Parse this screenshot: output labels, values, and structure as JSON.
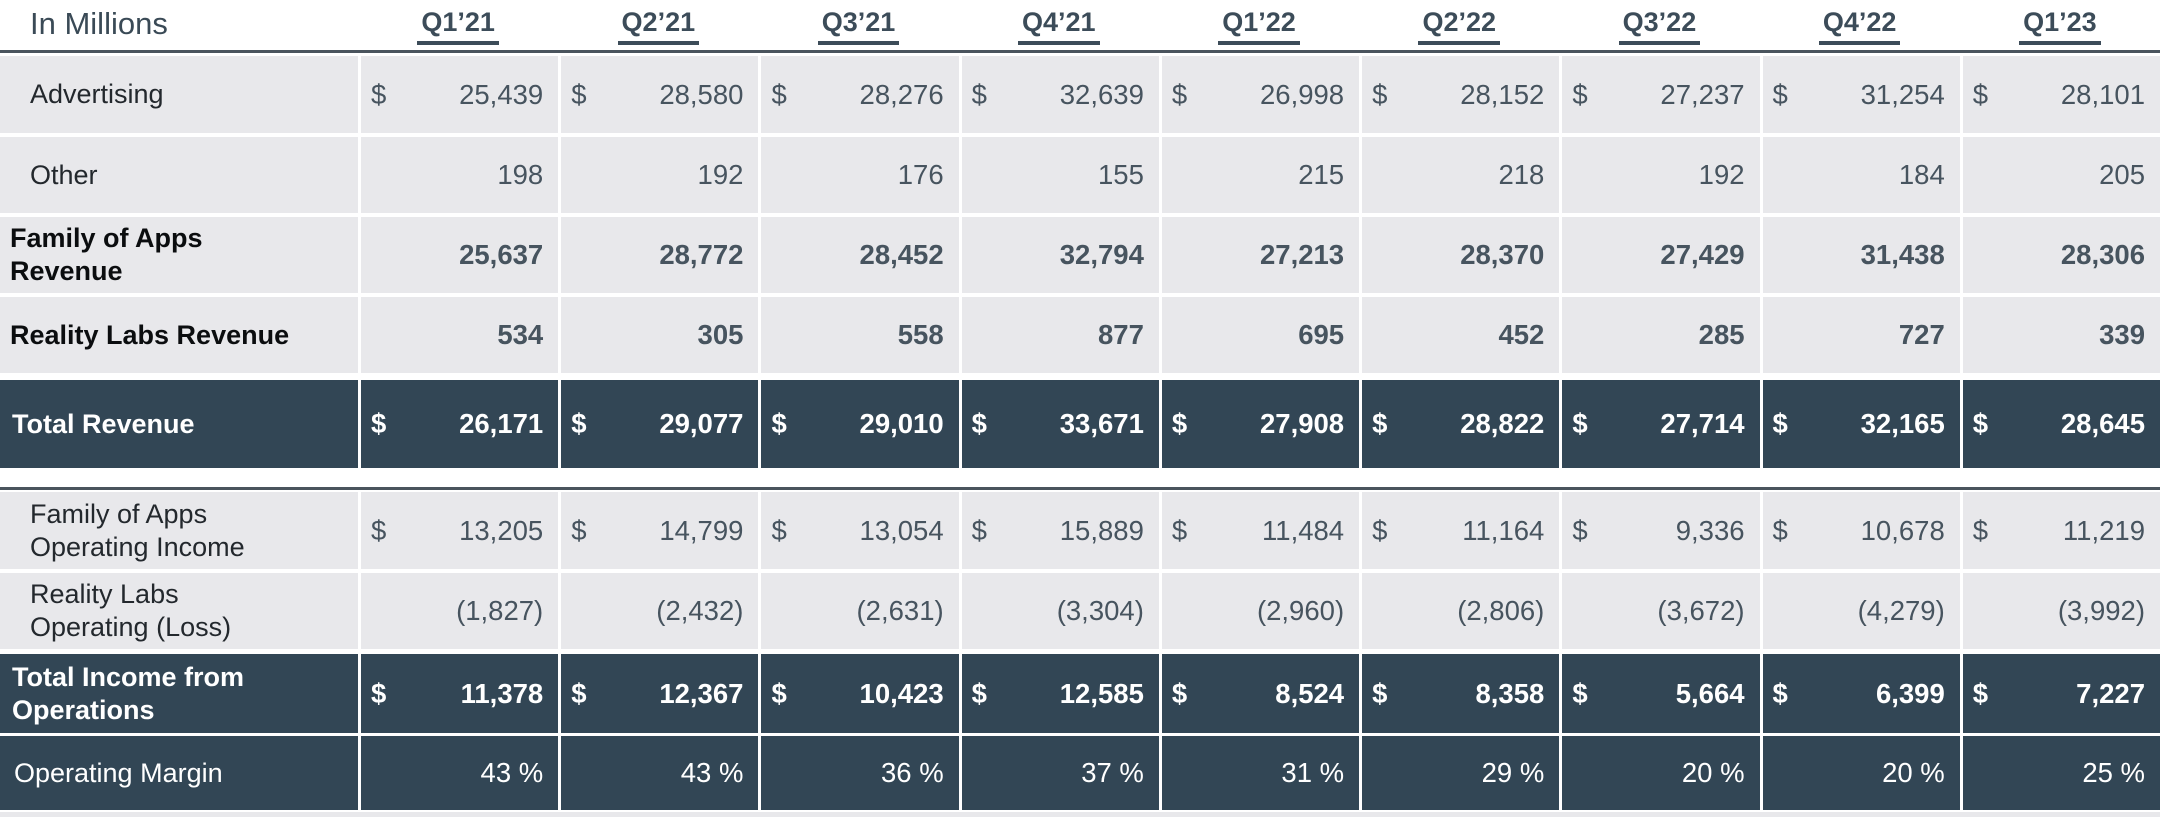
{
  "colors": {
    "dark_row_bg": "#324655",
    "light_row_bg": "#e8e8eb",
    "divider_line": "#4a545d",
    "light_value_text": "#47545f",
    "dark_value_text": "#ffffff",
    "header_text": "#3c4c59"
  },
  "table": {
    "title": "In Millions",
    "quarters": [
      "Q1’21",
      "Q2’21",
      "Q3’21",
      "Q4’21",
      "Q1’22",
      "Q2’22",
      "Q3’22",
      "Q4’22",
      "Q1’23"
    ],
    "rows": [
      {
        "key": "advertising",
        "label": "Advertising",
        "label_lines": [
          "Advertising"
        ],
        "theme": "light",
        "dollar": true,
        "bold_label": false,
        "bold_values": false,
        "values": [
          "25,439",
          "28,580",
          "28,276",
          "32,639",
          "26,998",
          "28,152",
          "27,237",
          "31,254",
          "28,101"
        ]
      },
      {
        "key": "other",
        "label": "Other",
        "label_lines": [
          "Other"
        ],
        "theme": "light",
        "dollar": false,
        "bold_label": false,
        "bold_values": false,
        "values": [
          "198",
          "192",
          "176",
          "155",
          "215",
          "218",
          "192",
          "184",
          "205"
        ]
      },
      {
        "key": "foa-revenue",
        "label": "Family of Apps Revenue",
        "label_lines": [
          "Family of Apps",
          "Revenue"
        ],
        "theme": "light",
        "dollar": false,
        "bold_label": true,
        "bold_values": true,
        "values": [
          "25,637",
          "28,772",
          "28,452",
          "32,794",
          "27,213",
          "28,370",
          "27,429",
          "31,438",
          "28,306"
        ]
      },
      {
        "key": "rl-revenue",
        "label": "Reality Labs Revenue",
        "label_lines": [
          "Reality Labs Revenue"
        ],
        "theme": "light",
        "dollar": false,
        "bold_label": true,
        "bold_values": true,
        "values": [
          "534",
          "305",
          "558",
          "877",
          "695",
          "452",
          "285",
          "727",
          "339"
        ]
      },
      {
        "key": "total-revenue",
        "label": "Total Revenue",
        "label_lines": [
          "Total Revenue"
        ],
        "theme": "dark",
        "dollar": true,
        "bold_label": true,
        "bold_values": true,
        "values": [
          "26,171",
          "29,077",
          "29,010",
          "33,671",
          "27,908",
          "28,822",
          "27,714",
          "32,165",
          "28,645"
        ]
      },
      {
        "key": "foa-op-income",
        "label": "Family of Apps Operating Income",
        "label_lines": [
          "Family of Apps",
          "Operating Income"
        ],
        "theme": "light",
        "dollar": true,
        "bold_label": false,
        "bold_values": false,
        "section_break_before": true,
        "values": [
          "13,205",
          "14,799",
          "13,054",
          "15,889",
          "11,484",
          "11,164",
          "9,336",
          "10,678",
          "11,219"
        ]
      },
      {
        "key": "rl-op-loss",
        "label": "Reality Labs Operating (Loss)",
        "label_lines": [
          "Reality Labs",
          "Operating (Loss)"
        ],
        "theme": "light",
        "dollar": false,
        "bold_label": false,
        "bold_values": false,
        "values": [
          "(1,827)",
          "(2,432)",
          "(2,631)",
          "(3,304)",
          "(2,960)",
          "(2,806)",
          "(3,672)",
          "(4,279)",
          "(3,992)"
        ]
      },
      {
        "key": "total-income",
        "label": "Total Income from Operations",
        "label_lines": [
          "Total Income from",
          "Operations"
        ],
        "theme": "dark",
        "dollar": true,
        "bold_label": true,
        "bold_values": true,
        "values": [
          "11,378",
          "12,367",
          "10,423",
          "12,585",
          "8,524",
          "8,358",
          "5,664",
          "6,399",
          "7,227"
        ]
      },
      {
        "key": "op-margin",
        "label": "Operating Margin",
        "label_lines": [
          "Operating Margin"
        ],
        "theme": "dark",
        "dollar": false,
        "bold_label": false,
        "bold_values": false,
        "values": [
          "43 %",
          "43 %",
          "36 %",
          "37 %",
          "31 %",
          "29 %",
          "20 %",
          "20 %",
          "25 %"
        ]
      }
    ]
  },
  "chart_data": {
    "type": "table",
    "title": "In Millions",
    "columns": [
      "Q1'21",
      "Q2'21",
      "Q3'21",
      "Q4'21",
      "Q1'22",
      "Q2'22",
      "Q3'22",
      "Q4'22",
      "Q1'23"
    ],
    "rows": [
      {
        "label": "Advertising",
        "unit": "USD millions",
        "values": [
          25439,
          28580,
          28276,
          32639,
          26998,
          28152,
          27237,
          31254,
          28101
        ]
      },
      {
        "label": "Other",
        "unit": "USD millions",
        "values": [
          198,
          192,
          176,
          155,
          215,
          218,
          192,
          184,
          205
        ]
      },
      {
        "label": "Family of Apps Revenue",
        "unit": "USD millions",
        "values": [
          25637,
          28772,
          28452,
          32794,
          27213,
          28370,
          27429,
          31438,
          28306
        ]
      },
      {
        "label": "Reality Labs Revenue",
        "unit": "USD millions",
        "values": [
          534,
          305,
          558,
          877,
          695,
          452,
          285,
          727,
          339
        ]
      },
      {
        "label": "Total Revenue",
        "unit": "USD millions",
        "values": [
          26171,
          29077,
          29010,
          33671,
          27908,
          28822,
          27714,
          32165,
          28645
        ]
      },
      {
        "label": "Family of Apps Operating Income",
        "unit": "USD millions",
        "values": [
          13205,
          14799,
          13054,
          15889,
          11484,
          11164,
          9336,
          10678,
          11219
        ]
      },
      {
        "label": "Reality Labs Operating (Loss)",
        "unit": "USD millions",
        "values": [
          -1827,
          -2432,
          -2631,
          -3304,
          -2960,
          -2806,
          -3672,
          -4279,
          -3992
        ]
      },
      {
        "label": "Total Income from Operations",
        "unit": "USD millions",
        "values": [
          11378,
          12367,
          10423,
          12585,
          8524,
          8358,
          5664,
          6399,
          7227
        ]
      },
      {
        "label": "Operating Margin",
        "unit": "%",
        "values": [
          43,
          43,
          36,
          37,
          31,
          29,
          20,
          20,
          25
        ]
      }
    ]
  }
}
